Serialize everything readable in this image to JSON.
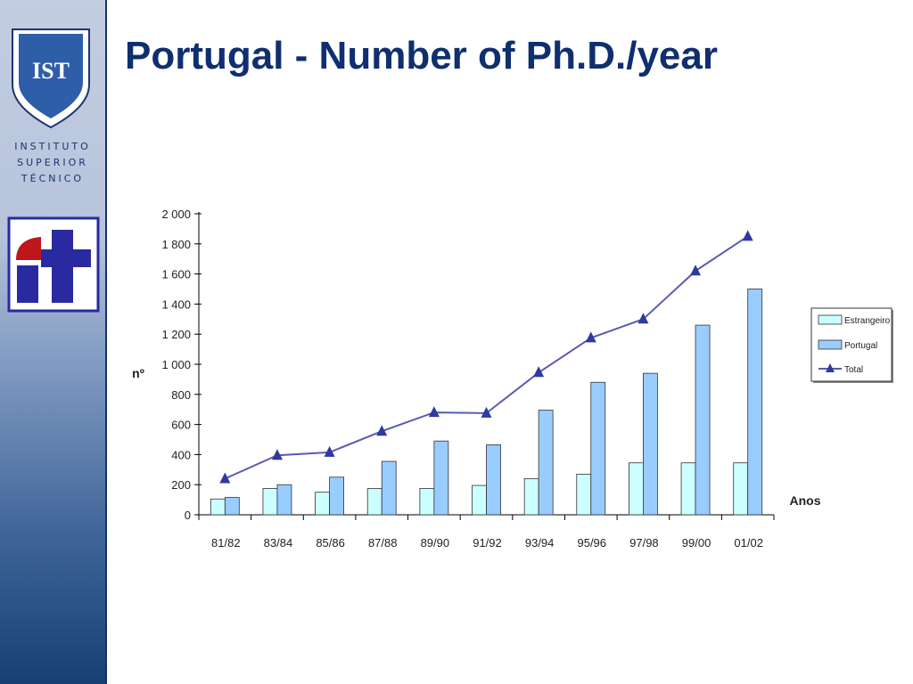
{
  "sidebar": {
    "institute_lines": [
      "INSTITUTO",
      "SUPERIOR",
      "TÉCNICO"
    ],
    "shield_logo_text": "IST",
    "it_logo_text": "it"
  },
  "slide": {
    "title": "Portugal - Number of Ph.D./year"
  },
  "chart_data": {
    "type": "bar",
    "title": "",
    "xlabel": "Anos",
    "ylabel": "nº",
    "ylim": [
      0,
      2000
    ],
    "ytick_values": [
      0,
      200,
      400,
      600,
      800,
      1000,
      1200,
      1400,
      1600,
      1800,
      2000
    ],
    "ytick_labels": [
      "0",
      "200",
      "400",
      "600",
      "800",
      "1 000",
      "1 200",
      "1 400",
      "1 600",
      "1 800",
      "2 000"
    ],
    "grid": false,
    "legend_position": "right",
    "categories": [
      "81/82",
      "83/84",
      "85/86",
      "87/88",
      "89/90",
      "91/92",
      "93/94",
      "95/96",
      "97/98",
      "99/00",
      "01/02"
    ],
    "series": [
      {
        "name": "Estrangeiro",
        "kind": "bar",
        "color": "#ccffff",
        "values": [
          105,
          175,
          150,
          175,
          175,
          195,
          240,
          270,
          345,
          345,
          345
        ]
      },
      {
        "name": "Portugal",
        "kind": "bar",
        "color": "#99ccff",
        "values": [
          115,
          200,
          250,
          355,
          490,
          465,
          695,
          880,
          940,
          1260,
          1500
        ]
      },
      {
        "name": "Total",
        "kind": "line",
        "color": "#5a5ab4",
        "values": [
          240,
          395,
          415,
          555,
          680,
          675,
          945,
          1175,
          1300,
          1620,
          1850
        ]
      }
    ]
  }
}
